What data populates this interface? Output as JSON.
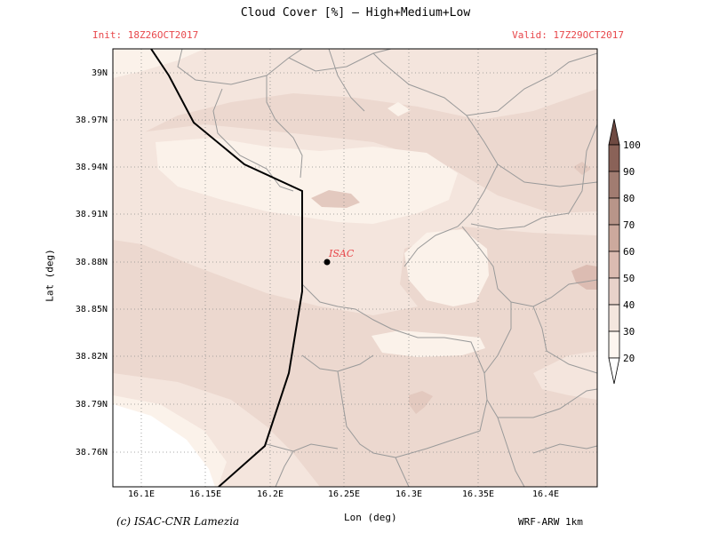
{
  "title": "Cloud Cover [%] — High+Medium+Low",
  "init": "Init: 18Z26OCT2017",
  "valid": "Valid: 17Z29OCT2017",
  "ylabel": "Lat (deg)",
  "xlabel": "Lon (deg)",
  "credit": "(c) ISAC-CNR Lamezia",
  "model": "WRF-ARW 1km",
  "lat_ticks": [
    "39N",
    "38.97N",
    "38.94N",
    "38.91N",
    "38.88N",
    "38.85N",
    "38.82N",
    "38.79N",
    "38.76N"
  ],
  "lon_ticks": [
    "16.1E",
    "16.15E",
    "16.2E",
    "16.25E",
    "16.3E",
    "16.35E",
    "16.4E"
  ],
  "station": {
    "label": "ISAC",
    "lon": 16.24,
    "lat": 38.88
  },
  "colorbar": {
    "levels": [
      "100",
      "90",
      "80",
      "70",
      "60",
      "50",
      "40",
      "30",
      "20"
    ],
    "colors": [
      "#6f4a42",
      "#8a6258",
      "#a17c71",
      "#b89589",
      "#cca99d",
      "#dbbbb1",
      "#e8d2ca",
      "#f4e6de",
      "#fdf6f0"
    ]
  },
  "fill_colors": {
    "c20": "#fbf2ea",
    "c30": "#f4e5dd",
    "c40": "#ecd8cf",
    "c50": "#dcbcb2",
    "low": "#ffffff"
  }
}
